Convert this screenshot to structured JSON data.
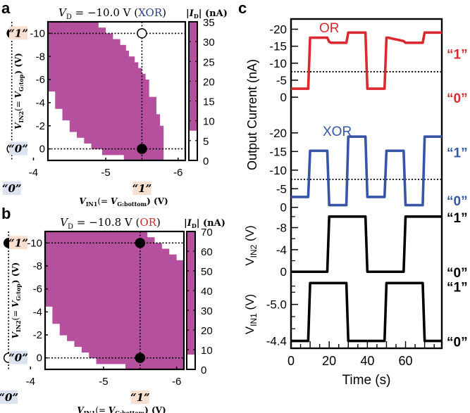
{
  "chart_data": [
    {
      "panel": "a",
      "type": "heatmap",
      "title": "V_D = -10.0 V (XOR)",
      "title_parts": {
        "prefix": "V",
        "sub": "D",
        "value": " = −10.0 V (",
        "gate": "XOR",
        "suffix": ")"
      },
      "gate_color": "#2e3d8f",
      "xlabel": "V_IN1(= V_G:bottom) (V)",
      "ylabel": "V_IN2(= V_G:top) (V)",
      "xlim": [
        -4.2,
        -6.1
      ],
      "ylim": [
        1,
        -11
      ],
      "xticks": [
        -4,
        -5,
        -6
      ],
      "xtick_labels": [
        "-4",
        "-5",
        "-6"
      ],
      "yticks": [
        -10,
        -8,
        -6,
        -4,
        -2,
        0
      ],
      "ytick_labels": [
        "-10",
        "-8",
        "-6",
        "-4",
        "-2",
        "0"
      ],
      "logic_levels": {
        "x": [
          {
            "label": "“0”",
            "value": -3.7,
            "bg": "#dbe3f1"
          },
          {
            "label": "“1”",
            "value": -5.5,
            "bg": "#f8e0d0"
          }
        ],
        "y": [
          {
            "label": "“1”",
            "value": -10,
            "bg": "#f8e0d0"
          },
          {
            "label": "“0”",
            "value": 0,
            "bg": "#dbe3f1"
          }
        ]
      },
      "points": [
        {
          "x": -3.7,
          "y": -10,
          "filled": true
        },
        {
          "x": -5.5,
          "y": -10,
          "filled": false
        },
        {
          "x": -3.7,
          "y": 0,
          "filled": false
        },
        {
          "x": -5.5,
          "y": 0,
          "filled": true
        }
      ],
      "region_rows": [
        {
          "y0": -11,
          "y1": -10.5,
          "x0": -4.12,
          "x1": -4.9
        },
        {
          "y0": -10.5,
          "y1": -10,
          "x0": -4.12,
          "x1": -5.0
        },
        {
          "y0": -10,
          "y1": -9.5,
          "x0": -4.12,
          "x1": -5.1
        },
        {
          "y0": -9.5,
          "y1": -9,
          "x0": -4.12,
          "x1": -5.2
        },
        {
          "y0": -9,
          "y1": -8.5,
          "x0": -4.12,
          "x1": -5.28
        },
        {
          "y0": -8.5,
          "y1": -8,
          "x0": -4.12,
          "x1": -5.32
        },
        {
          "y0": -8,
          "y1": -7.5,
          "x0": -4.12,
          "x1": -5.4
        },
        {
          "y0": -7.5,
          "y1": -7,
          "x0": -4.12,
          "x1": -5.45
        },
        {
          "y0": -7,
          "y1": -6.5,
          "x0": -4.2,
          "x1": -5.5
        },
        {
          "y0": -6.5,
          "y1": -6,
          "x0": -4.2,
          "x1": -5.55
        },
        {
          "y0": -6,
          "y1": -5.5,
          "x0": -4.2,
          "x1": -5.6
        },
        {
          "y0": -5.5,
          "y1": -5,
          "x0": -4.2,
          "x1": -5.6
        },
        {
          "y0": -5,
          "y1": -4.5,
          "x0": -4.3,
          "x1": -5.6
        },
        {
          "y0": -4.5,
          "y1": -4,
          "x0": -4.3,
          "x1": -5.7
        },
        {
          "y0": -4,
          "y1": -3.5,
          "x0": -4.3,
          "x1": -5.7
        },
        {
          "y0": -3.5,
          "y1": -3,
          "x0": -4.4,
          "x1": -5.7
        },
        {
          "y0": -3,
          "y1": -2.5,
          "x0": -4.4,
          "x1": -5.75
        },
        {
          "y0": -2.5,
          "y1": -2,
          "x0": -4.5,
          "x1": -5.75
        },
        {
          "y0": -2,
          "y1": -1.5,
          "x0": -4.5,
          "x1": -5.8
        },
        {
          "y0": -1.5,
          "y1": -1,
          "x0": -4.6,
          "x1": -5.8
        },
        {
          "y0": -1,
          "y1": -0.5,
          "x0": -4.7,
          "x1": -5.8
        },
        {
          "y0": -0.5,
          "y1": 0,
          "x0": -4.8,
          "x1": -5.8
        },
        {
          "y0": 0,
          "y1": 0.5,
          "x0": -4.95,
          "x1": -5.8
        },
        {
          "y0": 0.5,
          "y1": 1,
          "x0": -5.25,
          "x1": -5.8
        }
      ],
      "colorbar": {
        "label": "|I_D| (nA)",
        "ticks": [
          0,
          5,
          10,
          15,
          20,
          25,
          30,
          35
        ],
        "range": [
          0,
          35
        ],
        "threshold": 7.5,
        "color": "#b5509e"
      }
    },
    {
      "panel": "b",
      "type": "heatmap",
      "title": "V_D = -10.8 V (OR)",
      "title_parts": {
        "prefix": "V",
        "sub": "D",
        "value": " = −10.8 V (",
        "gate": "OR",
        "suffix": ")"
      },
      "gate_color": "#cc2a2a",
      "xlabel": "V_IN1(= V_G:bottom) (V)",
      "ylabel": "V_IN2(= V_G:top) (V)",
      "xlim": [
        -4.2,
        -6.1
      ],
      "ylim": [
        1,
        -11
      ],
      "xticks": [
        -4,
        -5,
        -6
      ],
      "xtick_labels": [
        "-4",
        "-5",
        "-6"
      ],
      "yticks": [
        -10,
        -8,
        -6,
        -4,
        -2,
        0
      ],
      "ytick_labels": [
        "-10",
        "-8",
        "-6",
        "-4",
        "-2",
        "0"
      ],
      "logic_levels": {
        "x": [
          {
            "label": "“0”",
            "value": -3.7,
            "bg": "#dbe3f1"
          },
          {
            "label": "“1”",
            "value": -5.5,
            "bg": "#f8e0d0"
          }
        ],
        "y": [
          {
            "label": "“1”",
            "value": -10,
            "bg": "#f8e0d0"
          },
          {
            "label": "“0”",
            "value": 0,
            "bg": "#dbe3f1"
          }
        ]
      },
      "points": [
        {
          "x": -3.7,
          "y": -10,
          "filled": true
        },
        {
          "x": -5.5,
          "y": -10,
          "filled": true
        },
        {
          "x": -3.7,
          "y": 0,
          "filled": false
        },
        {
          "x": -5.5,
          "y": 0,
          "filled": true
        }
      ],
      "region_rows": [
        {
          "y0": -11,
          "y1": -10.5,
          "x0": -3.9,
          "x1": -5.6
        },
        {
          "y0": -10.5,
          "y1": -10,
          "x0": -4.0,
          "x1": -5.7
        },
        {
          "y0": -10,
          "y1": -9.5,
          "x0": -4.0,
          "x1": -5.8
        },
        {
          "y0": -9.5,
          "y1": -9,
          "x0": -4.0,
          "x1": -5.9
        },
        {
          "y0": -9,
          "y1": -8.5,
          "x0": -4.0,
          "x1": -6.0
        },
        {
          "y0": -8.5,
          "y1": -7,
          "x0": -4.0,
          "x1": -6.1
        },
        {
          "y0": -7,
          "y1": -5.5,
          "x0": -4.1,
          "x1": -6.1
        },
        {
          "y0": -5.5,
          "y1": -4.5,
          "x0": -4.2,
          "x1": -6.1
        },
        {
          "y0": -4.5,
          "y1": -3,
          "x0": -4.3,
          "x1": -6.1
        },
        {
          "y0": -3,
          "y1": -2,
          "x0": -4.4,
          "x1": -6.1
        },
        {
          "y0": -2,
          "y1": -1.5,
          "x0": -4.5,
          "x1": -6.1
        },
        {
          "y0": -1.5,
          "y1": -1,
          "x0": -4.6,
          "x1": -6.1
        },
        {
          "y0": -1,
          "y1": -0.5,
          "x0": -4.7,
          "x1": -6.1
        },
        {
          "y0": -0.5,
          "y1": 0,
          "x0": -4.8,
          "x1": -6.1
        },
        {
          "y0": 0,
          "y1": 0.5,
          "x0": -4.9,
          "x1": -6.1
        },
        {
          "y0": 0.5,
          "y1": 1,
          "x0": -5.3,
          "x1": -6.1
        }
      ],
      "colorbar": {
        "label": "|I_D| (nA)",
        "ticks": [
          0,
          10,
          20,
          30,
          40,
          50,
          60,
          70
        ],
        "range": [
          0,
          70
        ],
        "threshold": 7.5,
        "color": "#b5509e"
      }
    },
    {
      "panel": "c",
      "type": "line",
      "xlabel": "Time (s)",
      "xlim": [
        0,
        79
      ],
      "xticks": [
        0,
        20,
        40,
        60
      ],
      "xtick_labels": [
        "0",
        "20",
        "40",
        "60"
      ],
      "shared_ylabel": "Output Current (nA)",
      "subplots": [
        {
          "name": "OR",
          "label": "OR",
          "color": "#d92b2f",
          "ylim": [
            1,
            -23
          ],
          "yticks": [
            -20,
            -15,
            -10,
            -5,
            0
          ],
          "ytick_labels": [
            "-20",
            "-15",
            "-10",
            "-5",
            "0"
          ],
          "threshold": -7.5,
          "levels": [
            {
              "label": "“1”",
              "value": -13
            },
            {
              "label": "“0”",
              "value": 0
            }
          ],
          "x": [
            0,
            9,
            10,
            19,
            20,
            21,
            29,
            30,
            39,
            40,
            49,
            50,
            51,
            59,
            60,
            69,
            70,
            79
          ],
          "y": [
            -2.5,
            -2.5,
            -17.5,
            -17.5,
            -16.3,
            -16.0,
            -16.0,
            -19,
            -19,
            -2.5,
            -2.5,
            -17.5,
            -17.5,
            -16.5,
            -16.0,
            -16.0,
            -19,
            -19
          ]
        },
        {
          "name": "XOR",
          "label": "XOR",
          "color": "#3655a6",
          "ylim": [
            1,
            -23
          ],
          "yticks": [
            -20,
            -15,
            -10,
            -5,
            0
          ],
          "ytick_labels": [
            "-20",
            "-15",
            "-10",
            "-5",
            "0"
          ],
          "threshold": -7.5,
          "levels": [
            {
              "label": "“1”",
              "value": -15
            },
            {
              "label": "“0”",
              "value": -2
            }
          ],
          "x": [
            0,
            9,
            10,
            19,
            20,
            29,
            30,
            39,
            40,
            49,
            50,
            59,
            60,
            69,
            70,
            79
          ],
          "y": [
            -2.8,
            -2.8,
            -15.2,
            -15.2,
            -0.6,
            -0.6,
            -19,
            -19,
            -2.8,
            -2.8,
            -15.2,
            -15.2,
            -0.6,
            -0.6,
            -19,
            -19
          ]
        },
        {
          "name": "V_IN2",
          "ylabel": "V_IN2 (V)",
          "color": "#000000",
          "ylim": [
            1.5,
            -11
          ],
          "yticks": [
            -8,
            -4,
            0
          ],
          "minor_yticks": [
            -10,
            -6,
            -2
          ],
          "ytick_labels": [
            "-8",
            "-4",
            "0"
          ],
          "levels": [
            {
              "label": "“1”",
              "value": -10
            },
            {
              "label": "“0”",
              "value": 0
            }
          ],
          "x": [
            0,
            19,
            20,
            39,
            40,
            59,
            60,
            79
          ],
          "y": [
            0,
            0,
            -10,
            -10,
            0,
            0,
            -10,
            -10
          ]
        },
        {
          "name": "V_IN1",
          "ylabel": "V_IN1 (V)",
          "color": "#000000",
          "ylim": [
            -4.28,
            -5.4
          ],
          "yticks": [
            -5.0,
            -4.4
          ],
          "minor_yticks": [
            -5.3,
            -5.2,
            -4.8,
            -4.6
          ],
          "ytick_labels": [
            "-5.0",
            "-4.4"
          ],
          "levels": [
            {
              "label": "“1”",
              "value": -5.3
            },
            {
              "label": "“0”",
              "value": -4.4
            }
          ],
          "x": [
            0,
            9,
            10,
            29,
            30,
            49,
            50,
            69,
            70,
            79
          ],
          "y": [
            -4.4,
            -4.4,
            -5.35,
            -5.35,
            -4.4,
            -4.4,
            -5.35,
            -5.35,
            -4.4,
            -4.4
          ]
        }
      ]
    }
  ],
  "panel_labels": {
    "a": "a",
    "b": "b",
    "c": "c"
  },
  "heatmap_text": {
    "cb_label_I": "I",
    "cb_label_sub": "D",
    "cb_label_unit": " (nA)",
    "ylabel_main": "V",
    "ylabel_sub": "IN2",
    "ylabel_mid": "(= ",
    "ylabel_v": "V",
    "ylabel_gsub": "G:top",
    "ylabel_end": ") (V)",
    "xlabel_main": "V",
    "xlabel_sub": "IN1",
    "xlabel_mid": "(= ",
    "xlabel_v": "V",
    "xlabel_gsub": "G:bottom",
    "xlabel_end": ") (V)"
  }
}
